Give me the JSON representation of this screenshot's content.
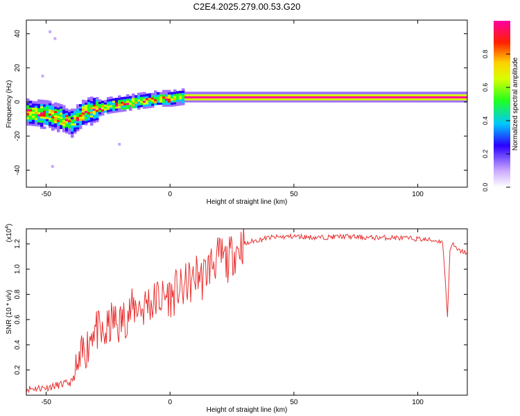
{
  "figure": {
    "title": "C2E4.2025.279.00.53.G20"
  },
  "chart_data": [
    {
      "type": "heatmap",
      "xlabel": "Height of straight line (km)",
      "ylabel": "Frequency (Hz)",
      "xlim": [
        -58,
        120
      ],
      "ylim": [
        -50,
        48
      ],
      "xticks": [
        -50,
        0,
        50,
        100
      ],
      "yticks": [
        -40,
        -20,
        0,
        20,
        40
      ],
      "grid": false,
      "ridge": {
        "x": [
          -58,
          -50,
          -45,
          -40,
          -35,
          -30,
          -25,
          -20,
          -15,
          -10,
          -5,
          0,
          5,
          10,
          20,
          30,
          60,
          100,
          120
        ],
        "y": [
          -6,
          -7,
          -9,
          -12,
          -6,
          -4,
          -2,
          -1,
          0,
          1,
          2,
          2,
          3,
          3,
          3,
          3,
          3,
          3,
          3
        ]
      },
      "colorbar": {
        "label": "Normalized spectral amplitude",
        "range": [
          0,
          1
        ],
        "ticks": [
          0.0,
          0.2,
          0.4,
          0.6,
          0.8
        ]
      }
    },
    {
      "type": "line",
      "xlabel": "Height of straight line (km)",
      "ylabel": "SNR (10 * v/v)",
      "scale_note": "(x10",
      "scale_exp": "4",
      "scale_close": ")",
      "xlim": [
        -58,
        120
      ],
      "ylim": [
        0.0,
        1.32
      ],
      "xticks": [
        -50,
        0,
        50,
        100
      ],
      "yticks": [
        0.2,
        0.4,
        0.6,
        0.8,
        1.0,
        1.2
      ],
      "series": [
        {
          "color": "#e8302f",
          "x": [
            -58,
            -50,
            -40,
            -37,
            -35,
            -33,
            -31,
            -29,
            -27,
            -25,
            -23,
            -21,
            -19,
            -17,
            -15,
            -13,
            -11,
            -9,
            -7,
            -5,
            -3,
            -1,
            1,
            3,
            5,
            7,
            9,
            11,
            13,
            15,
            17,
            19,
            21,
            23,
            25,
            27,
            29,
            31,
            33,
            40,
            50,
            60,
            70,
            80,
            90,
            100,
            110,
            111,
            112,
            113,
            114,
            116,
            120
          ],
          "y": [
            0.05,
            0.06,
            0.1,
            0.2,
            0.35,
            0.4,
            0.55,
            0.5,
            0.45,
            0.52,
            0.6,
            0.55,
            0.6,
            0.65,
            0.68,
            0.72,
            0.68,
            0.75,
            0.72,
            0.78,
            0.76,
            0.8,
            0.78,
            0.85,
            0.82,
            0.9,
            0.88,
            0.98,
            0.92,
            1.0,
            1.05,
            1.08,
            1.1,
            1.05,
            1.12,
            1.15,
            1.2,
            1.2,
            1.22,
            1.25,
            1.26,
            1.25,
            1.26,
            1.25,
            1.25,
            1.24,
            1.22,
            0.95,
            0.62,
            1.15,
            1.2,
            1.15,
            1.13
          ]
        }
      ]
    }
  ]
}
